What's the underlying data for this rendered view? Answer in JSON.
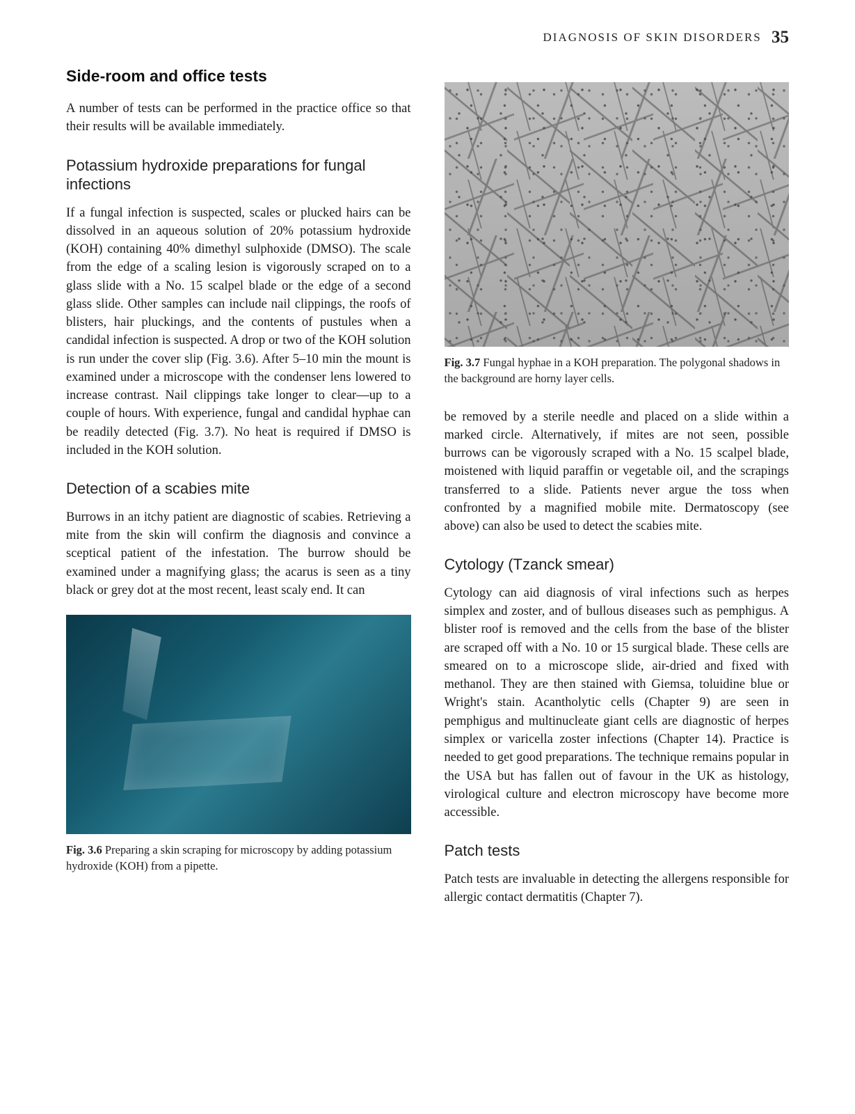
{
  "header": {
    "running_title": "DIAGNOSIS OF SKIN DISORDERS",
    "page_number": "35"
  },
  "left": {
    "section_title": "Side-room and office tests",
    "intro": "A number of tests can be performed in the practice office so that their results will be available immediately.",
    "sub1_title": "Potassium hydroxide preparations for fungal infections",
    "sub1_body": "If a fungal infection is suspected, scales or plucked hairs can be dissolved in an aqueous solution of 20% potassium hydroxide (KOH) containing 40% dimethyl sulphoxide (DMSO). The scale from the edge of a scaling lesion is vigorously scraped on to a glass slide with a No. 15 scalpel blade or the edge of a second glass slide. Other samples can include nail clippings, the roofs of blisters, hair pluckings, and the contents of pustules when a candidal infection is suspected. A drop or two of the KOH solution is run under the cover slip (Fig. 3.6). After 5–10 min the mount is examined under a microscope with the condenser lens lowered to increase contrast. Nail clippings take longer to clear—up to a couple of hours. With experience, fungal and candidal hyphae can be readily detected (Fig. 3.7). No heat is required if DMSO is included in the KOH solution.",
    "sub2_title": "Detection of a scabies mite",
    "sub2_body": "Burrows in an itchy patient are diagnostic of scabies. Retrieving a mite from the skin will confirm the diagnosis and convince a sceptical patient of the infestation. The burrow should be examined under a magnifying glass; the acarus is seen as a tiny black or grey dot at the most recent, least scaly end. It can",
    "fig36_num": "Fig. 3.6",
    "fig36_caption": "Preparing a skin scraping for microscopy by adding potassium hydroxide (KOH) from a pipette."
  },
  "right": {
    "fig37_num": "Fig. 3.7",
    "fig37_caption": "Fungal hyphae in a KOH preparation. The polygonal shadows in the background are horny layer cells.",
    "cont_body": "be removed by a sterile needle and placed on a slide within a marked circle. Alternatively, if mites are not seen, possible burrows can be vigorously scraped with a No. 15 scalpel blade, moistened with liquid paraffin or vegetable oil, and the scrapings transferred to a slide. Patients never argue the toss when confronted by a magnified mobile mite. Dermatoscopy (see above) can also be used to detect the scabies mite.",
    "sub3_title": "Cytology (Tzanck smear)",
    "sub3_body": "Cytology can aid diagnosis of viral infections such as herpes simplex and zoster, and of bullous diseases such as pemphigus. A blister roof is removed and the cells from the base of the blister are scraped off with a No. 10 or 15 surgical blade. These cells are smeared on to a microscope slide, air-dried and fixed with methanol. They are then stained with Giemsa, toluidine blue or Wright's stain. Acantholytic cells (Chapter 9) are seen in pemphigus and multinucleate giant cells are diagnostic of herpes simplex or varicella zoster infections (Chapter 14). Practice is needed to get good preparations. The technique remains popular in the USA but has fallen out of favour in the UK as histology, virological culture and electron microscopy have become more accessible.",
    "sub4_title": "Patch tests",
    "sub4_body": "Patch tests are invaluable in detecting the allergens responsible for allergic contact dermatitis (Chapter 7)."
  }
}
